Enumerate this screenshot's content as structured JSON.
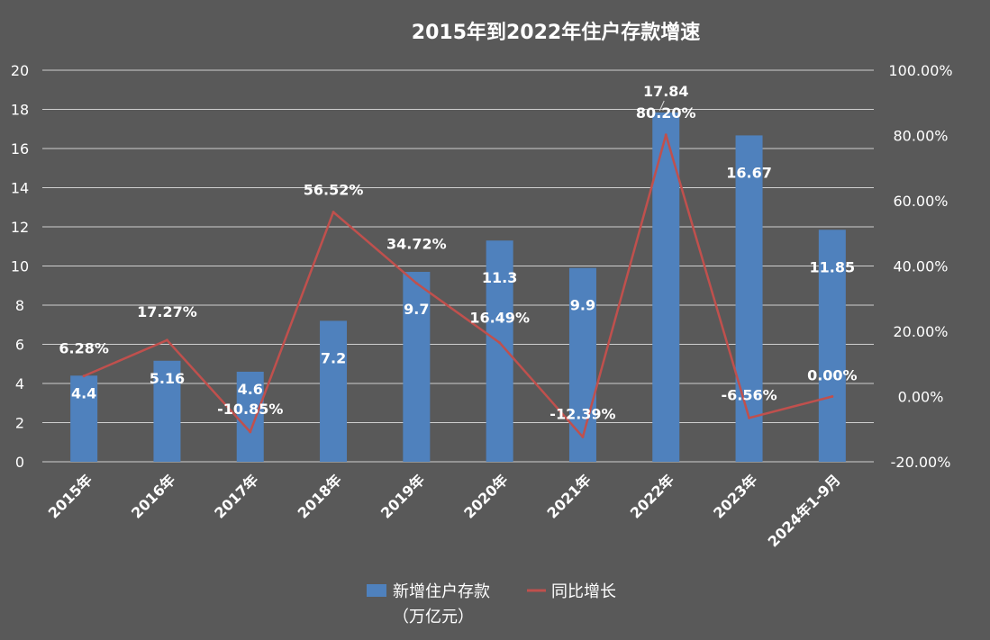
{
  "chart_data": {
    "type": "bar",
    "title": "2015年到2022年住户存款增速",
    "categories": [
      "2015年",
      "2016年",
      "2017年",
      "2018年",
      "2019年",
      "2020年",
      "2021年",
      "2022年",
      "2023年",
      "2024年1-9月"
    ],
    "series": [
      {
        "name": "新增住户存款（万亿元）",
        "type": "bar",
        "axis": "left",
        "color": "#4f81bd",
        "values": [
          4.4,
          5.16,
          4.6,
          7.2,
          9.7,
          11.3,
          9.9,
          17.84,
          16.67,
          11.85
        ],
        "labels": [
          "4.4",
          "5.16",
          "4.6",
          "7.2",
          "9.7",
          "11.3",
          "9.9",
          "17.84",
          "16.67",
          "11.85"
        ]
      },
      {
        "name": "同比增长",
        "type": "line",
        "axis": "right",
        "color": "#c0504d",
        "values": [
          6.28,
          17.27,
          -10.85,
          56.52,
          34.72,
          16.49,
          -12.39,
          80.2,
          -6.56,
          0.0
        ],
        "labels": [
          "6.28%",
          "17.27%",
          "-10.85%",
          "56.52%",
          "34.72%",
          "16.49%",
          "-12.39%",
          "80.20%",
          "-6.56%",
          "0.00%"
        ]
      }
    ],
    "y_left": {
      "range": [
        0,
        20
      ],
      "ticks": [
        "0",
        "2",
        "4",
        "6",
        "8",
        "10",
        "12",
        "14",
        "16",
        "18",
        "20"
      ]
    },
    "y_right": {
      "range": [
        -20,
        100
      ],
      "ticks": [
        "-20.00%",
        "0.00%",
        "20.00%",
        "40.00%",
        "60.00%",
        "80.00%",
        "100.00%"
      ]
    },
    "grid": true,
    "legend": "bottom",
    "legend_items": [
      "新增住户存款",
      "（万亿元）",
      "同比增长"
    ]
  }
}
